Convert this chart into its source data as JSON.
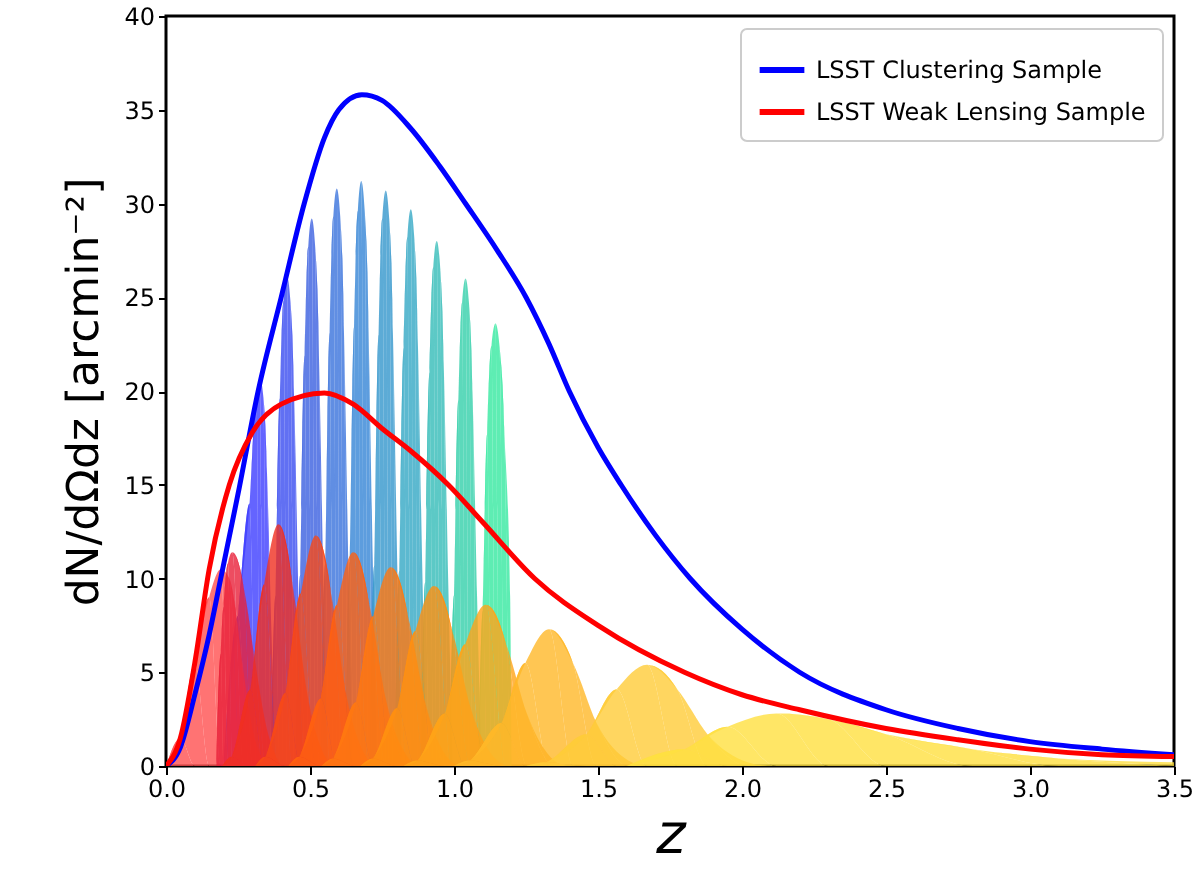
{
  "chart_data": {
    "type": "line",
    "xlabel": "z",
    "ylabel": "dN/dΩdz [arcmin⁻²]",
    "xlim": [
      0,
      3.5
    ],
    "ylim": [
      0,
      40
    ],
    "xticks": [
      {
        "value": 0,
        "label": "0.0"
      },
      0.5,
      {
        "value": 1,
        "label": "1.0"
      },
      1.5,
      {
        "value": 2,
        "label": "2.0"
      },
      2.5,
      {
        "value": 3,
        "label": "3.0"
      },
      3.5
    ],
    "yticks": [
      0,
      5,
      10,
      15,
      20,
      25,
      30,
      35,
      40
    ],
    "grid": false,
    "legend": "top right",
    "marker": "none",
    "line_style": "solid",
    "series": [
      {
        "type": "area",
        "color": "#3d3dff",
        "x": [
          0.2,
          0.25,
          0.29,
          0.314,
          0.326,
          0.338,
          0.351,
          0.366,
          0.381
        ],
        "values": [
          0,
          8,
          14,
          19.7,
          20.7,
          19.7,
          15.5,
          7.2,
          0
        ]
      },
      {
        "type": "area",
        "color": "#3a4cf0",
        "x": [
          0.365,
          0.38,
          0.395,
          0.408,
          0.42,
          0.432,
          0.445,
          0.46,
          0.475
        ],
        "values": [
          0,
          9.1,
          19.6,
          24.8,
          26.1,
          24.8,
          19.6,
          9.1,
          0
        ]
      },
      {
        "type": "area",
        "color": "#3a5fe0",
        "x": [
          0.451,
          0.466,
          0.481,
          0.494,
          0.506,
          0.518,
          0.531,
          0.546,
          0.561
        ],
        "values": [
          0,
          10.2,
          21.9,
          27.7,
          29.2,
          27.7,
          21.9,
          10.2,
          0
        ]
      },
      {
        "type": "area",
        "color": "#3872dc",
        "x": [
          0.538,
          0.553,
          0.568,
          0.581,
          0.593,
          0.605,
          0.618,
          0.633,
          0.648
        ],
        "values": [
          0,
          10.8,
          23.1,
          29.3,
          30.8,
          29.3,
          23.1,
          10.8,
          0
        ]
      },
      {
        "type": "area",
        "color": "#3584d6",
        "x": [
          0.623,
          0.638,
          0.653,
          0.666,
          0.678,
          0.69,
          0.703,
          0.718,
          0.733
        ],
        "values": [
          0,
          10.9,
          23.4,
          29.6,
          31.2,
          29.6,
          23.4,
          10.9,
          0
        ]
      },
      {
        "type": "area",
        "color": "#3396cc",
        "x": [
          0.708,
          0.723,
          0.738,
          0.751,
          0.763,
          0.775,
          0.788,
          0.803,
          0.818
        ],
        "values": [
          0,
          10.7,
          23,
          29.2,
          30.7,
          29.2,
          23,
          10.7,
          0
        ]
      },
      {
        "type": "area",
        "color": "#33a8c4",
        "x": [
          0.795,
          0.81,
          0.825,
          0.838,
          0.85,
          0.862,
          0.875,
          0.89,
          0.905
        ],
        "values": [
          0,
          10.4,
          22.3,
          28.2,
          29.7,
          28.2,
          22.3,
          10.4,
          0
        ]
      },
      {
        "type": "area",
        "color": "#33bcb8",
        "x": [
          0.885,
          0.9,
          0.915,
          0.928,
          0.94,
          0.952,
          0.965,
          0.98,
          0.995
        ],
        "values": [
          0,
          9.8,
          21,
          26.6,
          28,
          26.6,
          21,
          9.8,
          0
        ]
      },
      {
        "type": "area",
        "color": "#33d0aa",
        "x": [
          0.985,
          1.0,
          1.015,
          1.028,
          1.04,
          1.052,
          1.065,
          1.08,
          1.095
        ],
        "values": [
          0,
          9.1,
          19.5,
          24.7,
          26,
          24.7,
          19.5,
          9.1,
          0
        ]
      },
      {
        "type": "area",
        "color": "#36e8a0",
        "x": [
          1.085,
          1.1,
          1.115,
          1.13,
          1.144,
          1.158,
          1.175,
          1.195,
          1.2
        ],
        "values": [
          0,
          8.3,
          17.7,
          22.4,
          23.6,
          22.4,
          17.7,
          9,
          0
        ]
      },
      {
        "type": "area",
        "color": "#ff5050",
        "x": [
          0,
          0.05,
          0.1,
          0.15,
          0.19,
          0.22,
          0.26,
          0.3,
          0.35
        ],
        "values": [
          0,
          1.5,
          5.5,
          9,
          10.5,
          10,
          6,
          2,
          0
        ]
      },
      {
        "type": "area",
        "color": "#e8203a",
        "x": [
          0.175,
          0.19,
          0.2,
          0.215,
          0.23,
          0.27,
          0.3,
          0.35,
          0.4
        ],
        "values": [
          0,
          6,
          8.5,
          10.8,
          11.4,
          9.5,
          6.5,
          2,
          0
        ]
      },
      {
        "type": "area",
        "color": "#f03020",
        "x": [
          0.195,
          0.228,
          0.293,
          0.341,
          0.39,
          0.439,
          0.488,
          0.553,
          0.585
        ],
        "values": [
          0,
          0.5,
          4.1,
          9.7,
          12.9,
          9.7,
          4.1,
          0.5,
          0
        ]
      },
      {
        "type": "area",
        "color": "#f84818",
        "x": [
          0.31,
          0.345,
          0.415,
          0.468,
          0.52,
          0.573,
          0.625,
          0.695,
          0.73
        ],
        "values": [
          0,
          0.5,
          3.9,
          9.2,
          12.3,
          9.2,
          3.9,
          0.5,
          0
        ]
      },
      {
        "type": "area",
        "color": "#ff6010",
        "x": [
          0.425,
          0.463,
          0.538,
          0.594,
          0.65,
          0.706,
          0.763,
          0.838,
          0.875
        ],
        "values": [
          0,
          0.5,
          3.6,
          8.6,
          11.4,
          8.6,
          3.6,
          0.5,
          0
        ]
      },
      {
        "type": "area",
        "color": "#ff7810",
        "x": [
          0.54,
          0.58,
          0.66,
          0.72,
          0.78,
          0.84,
          0.9,
          0.98,
          1.02
        ],
        "values": [
          0,
          0.4,
          3.4,
          8,
          10.6,
          8,
          3.4,
          0.4,
          0
        ]
      },
      {
        "type": "area",
        "color": "#ff9010",
        "x": [
          0.675,
          0.718,
          0.803,
          0.866,
          0.93,
          0.994,
          1.058,
          1.143,
          1.185
        ],
        "values": [
          0,
          0.4,
          3.1,
          7.2,
          9.6,
          7.2,
          3.1,
          0.4,
          0
        ]
      },
      {
        "type": "area",
        "color": "#ffa418",
        "x": [
          0.825,
          0.873,
          0.968,
          1.039,
          1.11,
          1.181,
          1.253,
          1.348,
          1.395
        ],
        "values": [
          0,
          0.3,
          2.8,
          6.5,
          8.6,
          6.5,
          2.8,
          0.3,
          0
        ]
      },
      {
        "type": "area",
        "color": "#ffb828",
        "x": [
          1.0,
          1.055,
          1.165,
          1.248,
          1.33,
          1.413,
          1.495,
          1.605,
          1.66
        ],
        "values": [
          0,
          0.3,
          2.3,
          5.5,
          7.3,
          5.5,
          2.3,
          0.3,
          0
        ]
      },
      {
        "type": "area",
        "color": "#ffcc38",
        "x": [
          1.25,
          1.32,
          1.46,
          1.565,
          1.67,
          1.775,
          1.88,
          2.02,
          2.09
        ],
        "values": [
          0,
          0.2,
          1.7,
          4.1,
          5.4,
          4.1,
          1.7,
          0.2,
          0
        ]
      },
      {
        "type": "area",
        "color": "#ffe040",
        "x": [
          1.6,
          1.8,
          1.95,
          2.12,
          2.3,
          2.5,
          2.8,
          3.1,
          3.5
        ],
        "values": [
          0,
          0.9,
          2.1,
          2.8,
          2.5,
          1.7,
          0.9,
          0.4,
          0.2
        ]
      },
      {
        "name": "LSST Clustering Sample",
        "color": "#0000ff",
        "x": [
          0,
          0.05,
          0.1,
          0.15,
          0.19,
          0.25,
          0.32,
          0.4,
          0.48,
          0.55,
          0.6,
          0.68,
          0.75,
          0.85,
          0.95,
          1.04,
          1.15,
          1.25,
          1.33,
          1.4,
          1.5,
          1.58,
          1.7,
          1.82,
          2.0,
          2.2,
          2.5,
          2.75,
          3.0,
          3.25,
          3.5
        ],
        "values": [
          0,
          1,
          3.8,
          7,
          10,
          14.5,
          20,
          25,
          30,
          33.5,
          35,
          35.8,
          35.5,
          34,
          32,
          30,
          27.5,
          25,
          22.5,
          20,
          17,
          15,
          12.3,
          10,
          7.3,
          5,
          3,
          2,
          1.3,
          0.9,
          0.6
        ]
      },
      {
        "name": "LSST Weak Lensing Sample",
        "color": "#ff0000",
        "x": [
          0,
          0.05,
          0.1,
          0.15,
          0.22,
          0.3,
          0.4,
          0.55,
          0.65,
          0.75,
          0.85,
          0.98,
          1.1,
          1.28,
          1.5,
          1.8,
          2.0,
          2.2,
          2.5,
          2.75,
          3.0,
          3.25,
          3.5
        ],
        "values": [
          0,
          1.5,
          5.5,
          10.5,
          15,
          17.8,
          19.3,
          19.9,
          19.3,
          18,
          16.8,
          15,
          13,
          10,
          7.5,
          5,
          3.8,
          3,
          2,
          1.4,
          0.9,
          0.6,
          0.5
        ]
      }
    ]
  }
}
